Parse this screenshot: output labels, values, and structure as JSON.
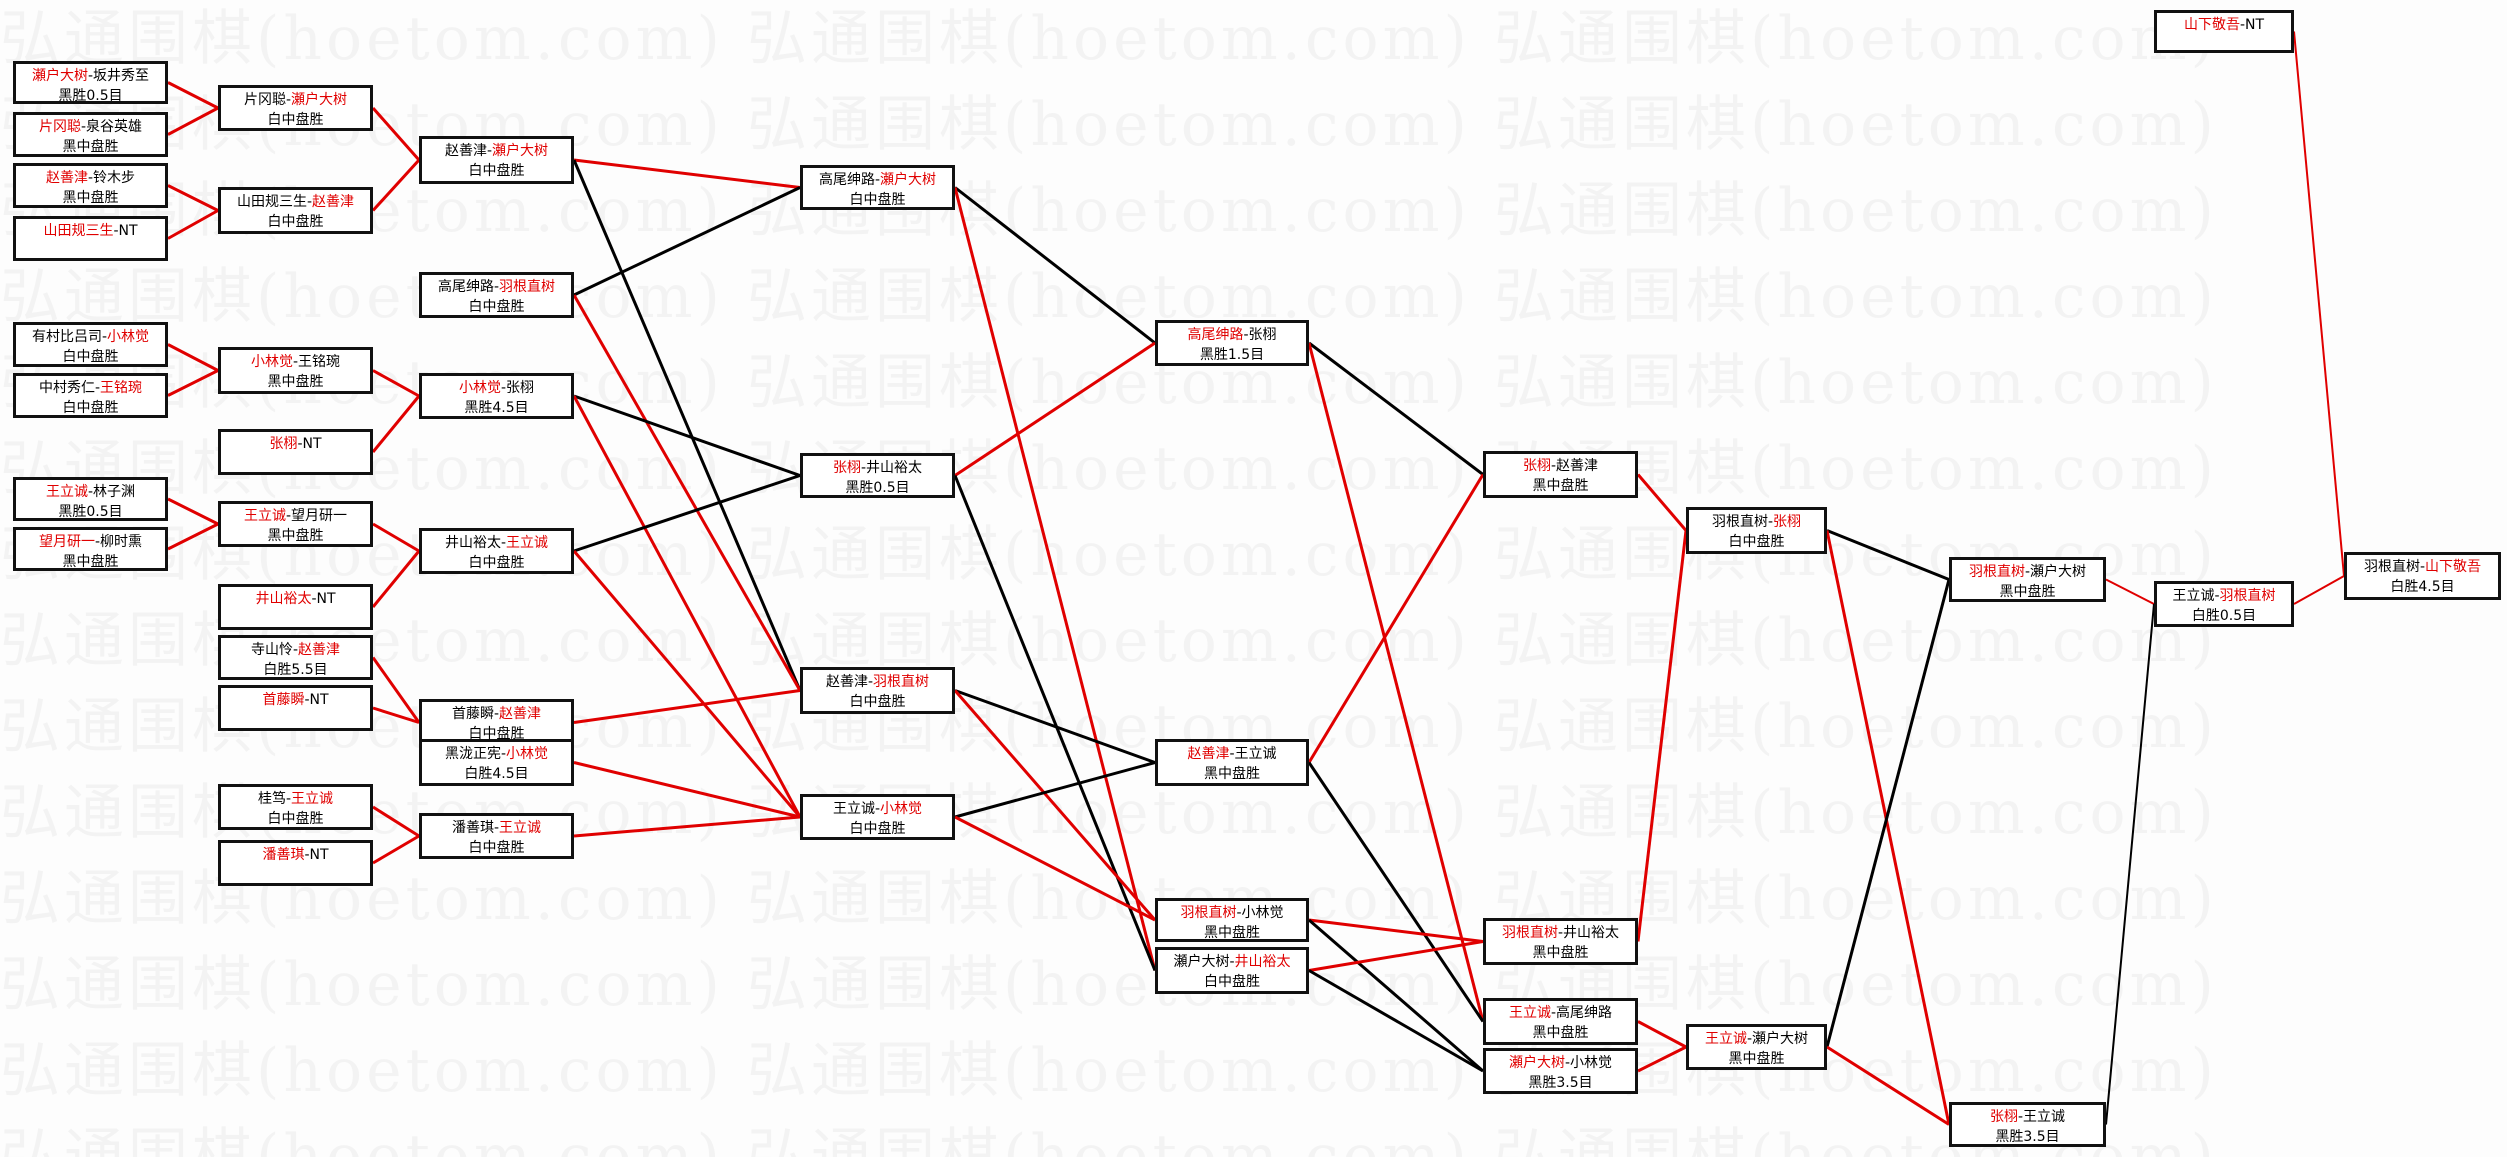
{
  "watermark": "弘通围棋(hoetom.com)",
  "colors": {
    "winner": "#e00000",
    "loser": "#000000",
    "win_line": "#e00000",
    "lose_line": "#000000"
  },
  "matches": [
    {
      "id": "A1",
      "p1": "瀬户大树",
      "p2": "坂井秀至",
      "winner": 1,
      "result": "黑胜0.5目"
    },
    {
      "id": "A2",
      "p1": "片冈聪",
      "p2": "泉谷英雄",
      "winner": 1,
      "result": "黑中盘胜"
    },
    {
      "id": "A3",
      "p1": "赵善津",
      "p2": "铃木步",
      "winner": 1,
      "result": "黑中盘胜"
    },
    {
      "id": "A4",
      "p1": "山田规三生",
      "p2": "NT",
      "winner": 1,
      "result": ""
    },
    {
      "id": "A5",
      "p1": "有村比吕司",
      "p2": "小林觉",
      "winner": 2,
      "result": "白中盘胜"
    },
    {
      "id": "A6",
      "p1": "中村秀仁",
      "p2": "王铭琬",
      "winner": 2,
      "result": "白中盘胜"
    },
    {
      "id": "A7",
      "p1": "王立诚",
      "p2": "林子渊",
      "winner": 1,
      "result": "黑胜0.5目"
    },
    {
      "id": "A8",
      "p1": "望月研一",
      "p2": "柳时熏",
      "winner": 1,
      "result": "黑中盘胜"
    },
    {
      "id": "B1",
      "p1": "片冈聪",
      "p2": "瀬户大树",
      "winner": 2,
      "result": "白中盘胜"
    },
    {
      "id": "B2",
      "p1": "山田规三生",
      "p2": "赵善津",
      "winner": 2,
      "result": "白中盘胜"
    },
    {
      "id": "B3",
      "p1": "小林觉",
      "p2": "王铭琬",
      "winner": 1,
      "result": "黑中盘胜"
    },
    {
      "id": "B4",
      "p1": "张栩",
      "p2": "NT",
      "winner": 1,
      "result": ""
    },
    {
      "id": "B5",
      "p1": "王立诚",
      "p2": "望月研一",
      "winner": 1,
      "result": "黑中盘胜"
    },
    {
      "id": "B6",
      "p1": "井山裕太",
      "p2": "NT",
      "winner": 1,
      "result": ""
    },
    {
      "id": "B7",
      "p1": "寺山怜",
      "p2": "赵善津",
      "winner": 2,
      "result": "白胜5.5目"
    },
    {
      "id": "B8",
      "p1": "首藤瞬",
      "p2": "NT",
      "winner": 1,
      "result": ""
    },
    {
      "id": "B9",
      "p1": "桂笃",
      "p2": "王立诚",
      "winner": 2,
      "result": "白中盘胜"
    },
    {
      "id": "B10",
      "p1": "潘善琪",
      "p2": "NT",
      "winner": 1,
      "result": ""
    },
    {
      "id": "C1",
      "p1": "赵善津",
      "p2": "瀬户大树",
      "winner": 2,
      "result": "白中盘胜"
    },
    {
      "id": "C2",
      "p1": "高尾绅路",
      "p2": "羽根直树",
      "winner": 2,
      "result": "白中盘胜"
    },
    {
      "id": "C3",
      "p1": "小林觉",
      "p2": "张栩",
      "winner": 1,
      "result": "黑胜4.5目"
    },
    {
      "id": "C4",
      "p1": "井山裕太",
      "p2": "王立诚",
      "winner": 2,
      "result": "白中盘胜"
    },
    {
      "id": "C5",
      "p1": "首藤瞬",
      "p2": "赵善津",
      "winner": 2,
      "result": "白中盘胜"
    },
    {
      "id": "C6",
      "p1": "黑泷正宪",
      "p2": "小林觉",
      "winner": 2,
      "result": "白胜4.5目"
    },
    {
      "id": "C7",
      "p1": "潘善琪",
      "p2": "王立诚",
      "winner": 2,
      "result": "白中盘胜"
    },
    {
      "id": "D1",
      "p1": "高尾绅路",
      "p2": "瀬户大树",
      "winner": 2,
      "result": "白中盘胜"
    },
    {
      "id": "D2",
      "p1": "张栩",
      "p2": "井山裕太",
      "winner": 1,
      "result": "黑胜0.5目"
    },
    {
      "id": "D3",
      "p1": "赵善津",
      "p2": "羽根直树",
      "winner": 2,
      "result": "白中盘胜"
    },
    {
      "id": "D4",
      "p1": "王立诚",
      "p2": "小林觉",
      "winner": 2,
      "result": "白中盘胜"
    },
    {
      "id": "E1",
      "p1": "高尾绅路",
      "p2": "张栩",
      "winner": 1,
      "result": "黑胜1.5目"
    },
    {
      "id": "E2",
      "p1": "赵善津",
      "p2": "王立诚",
      "winner": 1,
      "result": "黑中盘胜"
    },
    {
      "id": "E3",
      "p1": "羽根直树",
      "p2": "小林觉",
      "winner": 1,
      "result": "黑中盘胜"
    },
    {
      "id": "E4",
      "p1": "瀬户大树",
      "p2": "井山裕太",
      "winner": 2,
      "result": "白中盘胜"
    },
    {
      "id": "F1",
      "p1": "张栩",
      "p2": "赵善津",
      "winner": 1,
      "result": "黑中盘胜"
    },
    {
      "id": "F2",
      "p1": "羽根直树",
      "p2": "井山裕太",
      "winner": 1,
      "result": "黑中盘胜"
    },
    {
      "id": "F3",
      "p1": "王立诚",
      "p2": "高尾绅路",
      "winner": 1,
      "result": "黑中盘胜"
    },
    {
      "id": "F4",
      "p1": "瀬户大树",
      "p2": "小林觉",
      "winner": 1,
      "result": "黑胜3.5目"
    },
    {
      "id": "G1",
      "p1": "羽根直树",
      "p2": "张栩",
      "winner": 2,
      "result": "白中盘胜"
    },
    {
      "id": "G2",
      "p1": "王立诚",
      "p2": "瀬户大树",
      "winner": 1,
      "result": "黑中盘胜"
    },
    {
      "id": "H1",
      "p1": "羽根直树",
      "p2": "瀬户大树",
      "winner": 1,
      "result": "黑中盘胜"
    },
    {
      "id": "H2",
      "p1": "张栩",
      "p2": "王立诚",
      "winner": 1,
      "result": "黑胜3.5目"
    },
    {
      "id": "I",
      "p1": "王立诚",
      "p2": "羽根直树",
      "winner": 2,
      "result": "白胜0.5目"
    },
    {
      "id": "K",
      "p1": "山下敬吾",
      "p2": "NT",
      "winner": 1,
      "result": ""
    },
    {
      "id": "J",
      "p1": "羽根直树",
      "p2": "山下敬吾",
      "winner": 2,
      "result": "白胜4.5目"
    }
  ],
  "edges": [
    [
      "A1",
      "B1",
      "win"
    ],
    [
      "A2",
      "B1",
      "win"
    ],
    [
      "A3",
      "B2",
      "win"
    ],
    [
      "A4",
      "B2",
      "win"
    ],
    [
      "A5",
      "B3",
      "win"
    ],
    [
      "A6",
      "B3",
      "win"
    ],
    [
      "A7",
      "B5",
      "win"
    ],
    [
      "A8",
      "B5",
      "win"
    ],
    [
      "B1",
      "C1",
      "win"
    ],
    [
      "B2",
      "C1",
      "win"
    ],
    [
      "B3",
      "C3",
      "win"
    ],
    [
      "B4",
      "C3",
      "win"
    ],
    [
      "B5",
      "C4",
      "win"
    ],
    [
      "B6",
      "C4",
      "win"
    ],
    [
      "B7",
      "C5",
      "win"
    ],
    [
      "B8",
      "C5",
      "win"
    ],
    [
      "B9",
      "C7",
      "win"
    ],
    [
      "B10",
      "C7",
      "win"
    ],
    [
      "C1",
      "D1",
      "win"
    ],
    [
      "C1",
      "D3",
      "lose"
    ],
    [
      "C2",
      "D1",
      "lose"
    ],
    [
      "C2",
      "D3",
      "win"
    ],
    [
      "C3",
      "D2",
      "lose"
    ],
    [
      "C3",
      "D4",
      "win"
    ],
    [
      "C4",
      "D2",
      "lose"
    ],
    [
      "C4",
      "D4",
      "win"
    ],
    [
      "C5",
      "D3",
      "win"
    ],
    [
      "C6",
      "D4",
      "win"
    ],
    [
      "C7",
      "D4",
      "win"
    ],
    [
      "D1",
      "E1",
      "lose"
    ],
    [
      "D1",
      "E4",
      "win"
    ],
    [
      "D2",
      "E1",
      "win"
    ],
    [
      "D2",
      "E4",
      "lose"
    ],
    [
      "D3",
      "E2",
      "lose"
    ],
    [
      "D3",
      "E3",
      "win"
    ],
    [
      "D4",
      "E2",
      "lose"
    ],
    [
      "D4",
      "E3",
      "win"
    ],
    [
      "E1",
      "F1",
      "lose"
    ],
    [
      "E1",
      "F3",
      "win"
    ],
    [
      "E2",
      "F1",
      "win"
    ],
    [
      "E2",
      "F3",
      "lose"
    ],
    [
      "E3",
      "F2",
      "win"
    ],
    [
      "E3",
      "F4",
      "lose"
    ],
    [
      "E4",
      "F2",
      "win"
    ],
    [
      "E4",
      "F4",
      "lose"
    ],
    [
      "F1",
      "G1",
      "win"
    ],
    [
      "F2",
      "G1",
      "win"
    ],
    [
      "F3",
      "G2",
      "win"
    ],
    [
      "F4",
      "G2",
      "win"
    ],
    [
      "G1",
      "H1",
      "lose"
    ],
    [
      "G1",
      "H2",
      "win"
    ],
    [
      "G2",
      "H1",
      "lose"
    ],
    [
      "G2",
      "H2",
      "win"
    ],
    [
      "H1",
      "I",
      "win"
    ],
    [
      "H2",
      "I",
      "lose"
    ],
    [
      "I",
      "J",
      "win"
    ],
    [
      "K",
      "J",
      "win"
    ]
  ]
}
